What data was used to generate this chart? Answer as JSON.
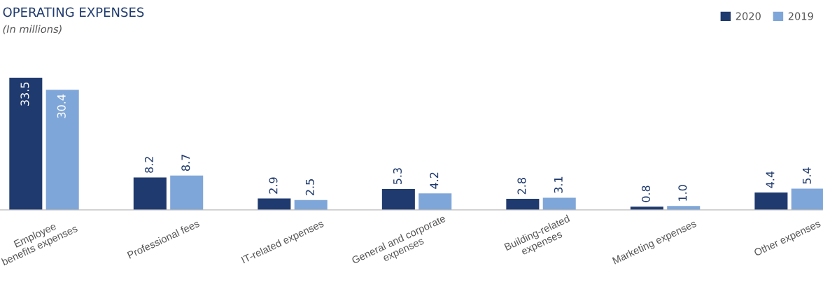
{
  "chart_data": {
    "type": "bar",
    "title": "OPERATING EXPENSES",
    "subtitle": "(In millions)",
    "categories": [
      "Employee\nbenefits expenses",
      "Professional fees",
      "IT-related expenses",
      "General and corporate\nexpenses",
      "Building-related\nexpenses",
      "Marketing expenses",
      "Other expenses"
    ],
    "series": [
      {
        "name": "2020",
        "color": "#1f3a6e",
        "values": [
          33.5,
          8.2,
          2.9,
          5.3,
          2.8,
          0.8,
          4.4
        ],
        "value_labels": [
          "33.5",
          "8.2",
          "2.9",
          "5.3",
          "2.8",
          "0.8",
          "4.4"
        ]
      },
      {
        "name": "2019",
        "color": "#7fa6d8",
        "values": [
          30.4,
          8.7,
          2.5,
          4.2,
          3.1,
          1.0,
          5.4
        ],
        "value_labels": [
          "30.4",
          "8.7",
          "2.5",
          "4.2",
          "3.1",
          "1.0",
          "5.4"
        ]
      }
    ],
    "legend": "top right",
    "grid": false
  }
}
